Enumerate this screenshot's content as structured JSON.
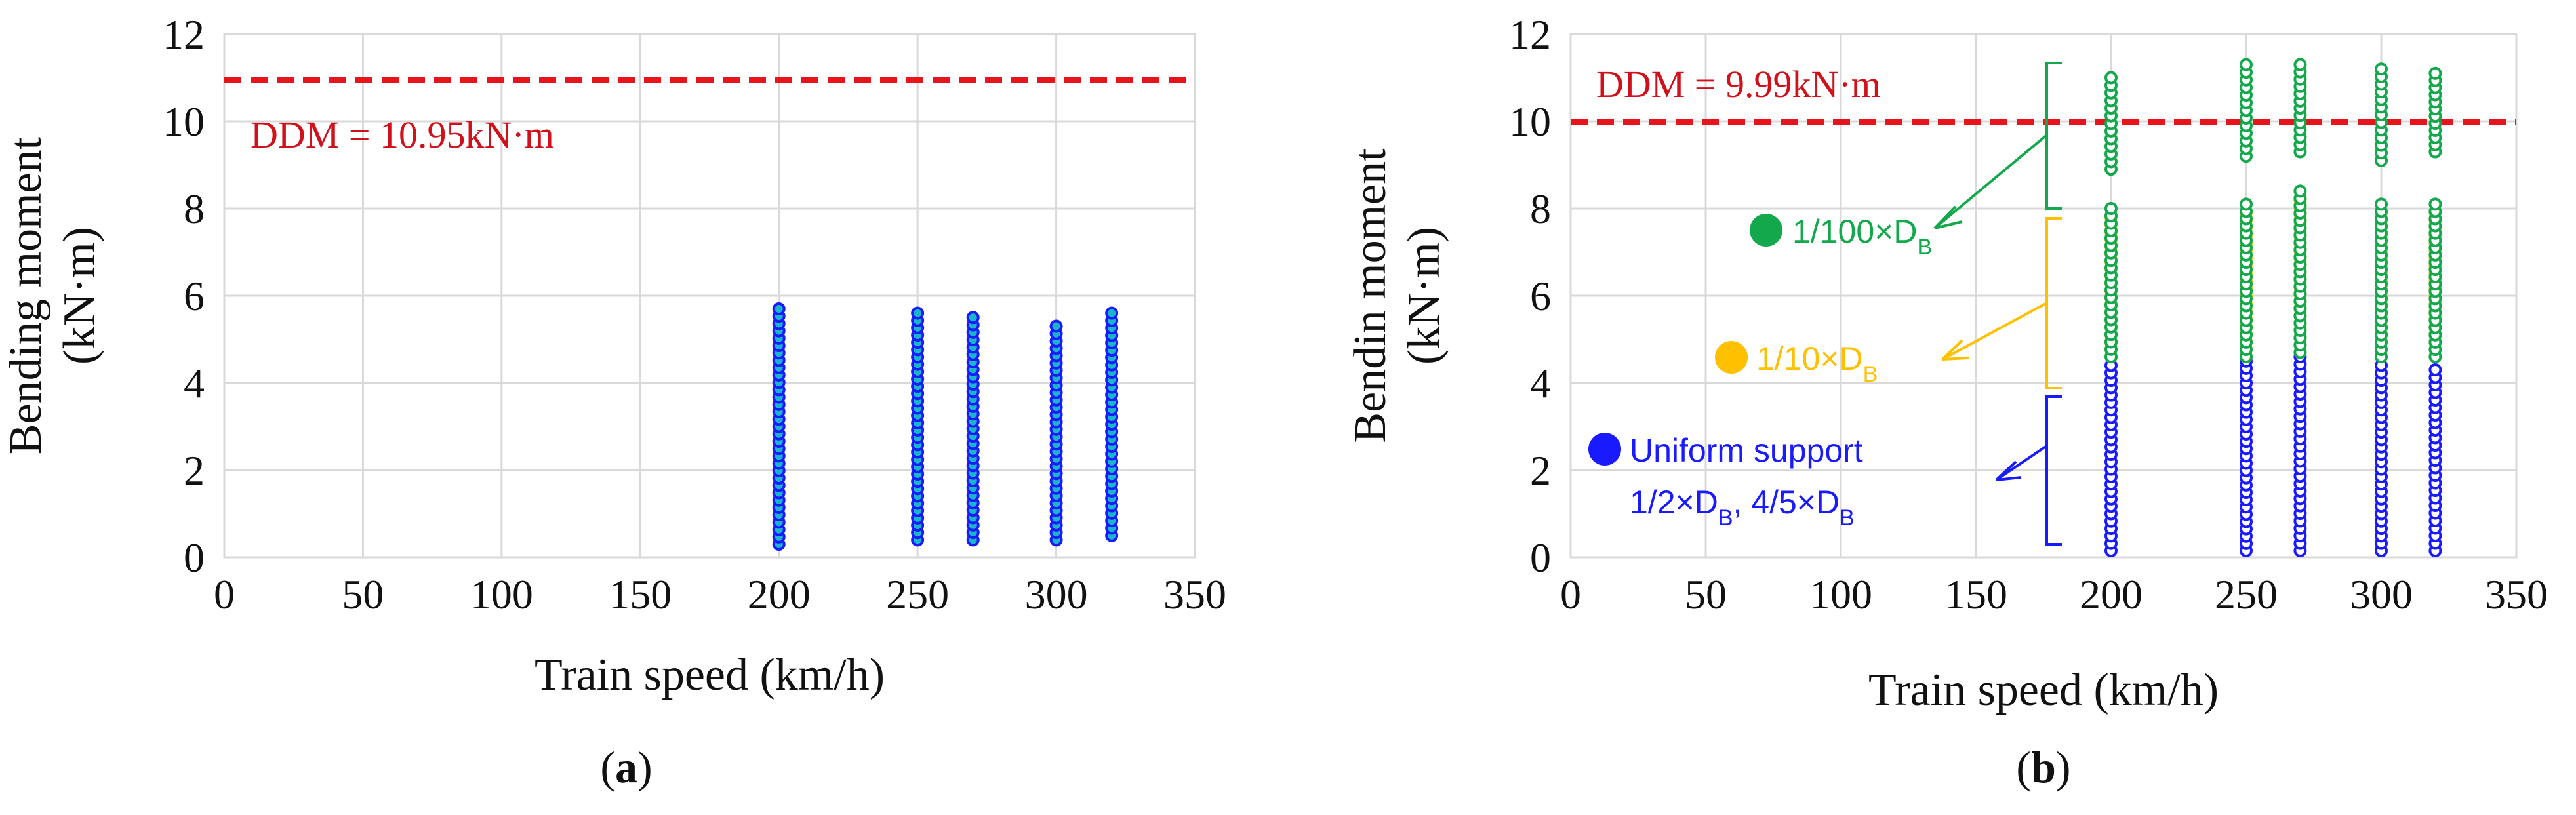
{
  "panels": [
    {
      "caption": "(a)",
      "caption_letter": "a",
      "chart_data": {
        "type": "scatter",
        "xlabel": "Train speed (km/h)",
        "ylabel_lines": [
          "Bending moment",
          "(kN·m)"
        ],
        "xlim": [
          0,
          350
        ],
        "ylim": [
          0,
          12
        ],
        "xticks": [
          0,
          50,
          100,
          150,
          200,
          250,
          300,
          350
        ],
        "yticks": [
          0,
          2,
          4,
          6,
          8,
          10,
          12
        ],
        "grid": true,
        "reference_line": {
          "label": "DDM = 10.95kN·m",
          "value": 10.95,
          "color": "#e8141b",
          "style": "dashed"
        },
        "series": [
          {
            "color": "#1a1aff",
            "fill": "#19b6c9",
            "points": [
              {
                "x": 200,
                "y_min": 0.3,
                "y_max": 5.7
              },
              {
                "x": 250,
                "y_min": 0.4,
                "y_max": 5.6
              },
              {
                "x": 270,
                "y_min": 0.4,
                "y_max": 5.5
              },
              {
                "x": 300,
                "y_min": 0.4,
                "y_max": 5.3
              },
              {
                "x": 320,
                "y_min": 0.5,
                "y_max": 5.6
              }
            ]
          }
        ]
      }
    },
    {
      "caption": "(b)",
      "caption_letter": "b",
      "chart_data": {
        "type": "scatter",
        "xlabel": "Train speed (km/h)",
        "ylabel_lines": [
          "Bendin moment",
          "(kN·m)"
        ],
        "xlim": [
          0,
          350
        ],
        "ylim": [
          0,
          12
        ],
        "xticks": [
          0,
          50,
          100,
          150,
          200,
          250,
          300,
          350
        ],
        "yticks": [
          0,
          2,
          4,
          6,
          8,
          10,
          12
        ],
        "grid": true,
        "reference_line": {
          "label": "DDM = 9.99kN·m",
          "value": 9.99,
          "color": "#e8141b",
          "style": "dashed"
        },
        "series": [
          {
            "legend_text": "Uniform support",
            "legend_line2": "1/2×D_B, 4/5×D_B",
            "color": "#1a1aff",
            "fill": "#ffffff",
            "points": [
              {
                "x": 200,
                "y_min": 0.15,
                "y_max": 4.4
              },
              {
                "x": 250,
                "y_min": 0.15,
                "y_max": 4.5
              },
              {
                "x": 270,
                "y_min": 0.15,
                "y_max": 4.6
              },
              {
                "x": 300,
                "y_min": 0.15,
                "y_max": 4.4
              },
              {
                "x": 320,
                "y_min": 0.15,
                "y_max": 4.3
              }
            ]
          },
          {
            "legend_text": "1/10×D_B",
            "color": "#ffc000",
            "fill": "#ffffff",
            "points": [
              {
                "x": 200,
                "y_min": 4.6,
                "y_max": 7.8
              },
              {
                "x": 250,
                "y_min": 4.6,
                "y_max": 7.9
              },
              {
                "x": 270,
                "y_min": 4.7,
                "y_max": 8.2
              },
              {
                "x": 300,
                "y_min": 4.6,
                "y_max": 7.9
              },
              {
                "x": 320,
                "y_min": 4.6,
                "y_max": 7.9
              }
            ]
          },
          {
            "legend_text": "1/100×D_B",
            "color": "#12a84b",
            "fill": "#ffffff",
            "points": [
              {
                "x": 200,
                "y_min": 4.6,
                "y_max": 8.0
              },
              {
                "x": 200,
                "y_min": 8.9,
                "y_max": 11.0
              },
              {
                "x": 250,
                "y_min": 4.6,
                "y_max": 8.1
              },
              {
                "x": 250,
                "y_min": 9.2,
                "y_max": 11.3
              },
              {
                "x": 270,
                "y_min": 4.7,
                "y_max": 8.4
              },
              {
                "x": 270,
                "y_min": 9.3,
                "y_max": 11.3
              },
              {
                "x": 300,
                "y_min": 4.6,
                "y_max": 8.1
              },
              {
                "x": 300,
                "y_min": 9.1,
                "y_max": 11.2
              },
              {
                "x": 320,
                "y_min": 4.6,
                "y_max": 8.1
              },
              {
                "x": 320,
                "y_min": 9.3,
                "y_max": 11.1
              }
            ]
          }
        ]
      }
    }
  ]
}
